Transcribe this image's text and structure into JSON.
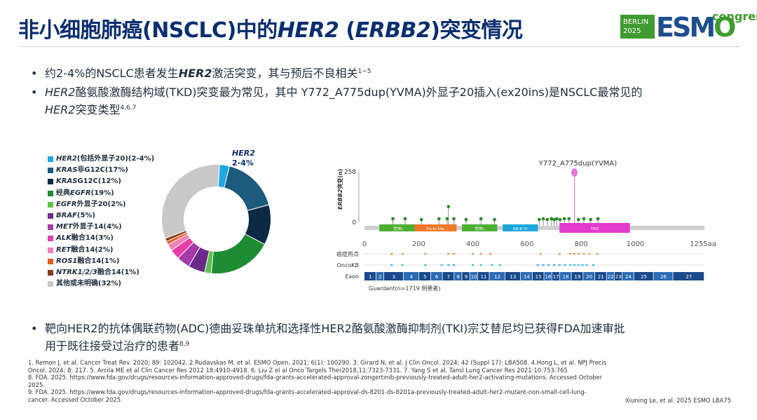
{
  "title": {
    "prefix": "非小细胞肺癌(NSCLC)中的",
    "her2": "HER2",
    "paren_open": " (",
    "erbb2": "ERBB2",
    "suffix": ")突变情况"
  },
  "logo": {
    "city": "BERLIN",
    "year": "2025",
    "brand": "ESMO",
    "brand_es": "ESM",
    "brand_o": "O",
    "suffix": "congress",
    "brand_color": "#1f4e8c",
    "accent_color": "#3f9a2f"
  },
  "bullets": [
    {
      "pre": "约2-4%的NSCLC患者发生",
      "em": "HER2",
      "post": "激活突变，其与预后不良相关",
      "sup": "1−5"
    },
    {
      "em": "HER2",
      "line1": "酪氨酸激酶结构域(TKD)突变最为常见，其中 Y772_A775dup(YVMA)外显子20插入(ex20ins)是NSCLC最常见的",
      "em2": "HER2",
      "line2": "突变类型",
      "sup": "4,6,7"
    }
  ],
  "bottom_bullet": {
    "line1": "靶向HER2的抗体偶联药物(ADC)德曲妥珠单抗和选择性HER2酪氨酸激酶抑制剂(TKI)宗艾替尼均已获得FDA加速审批",
    "line2": "用于既往接受过治疗的患者",
    "sup": "8,9"
  },
  "donut_chart": {
    "type": "pie",
    "callout_title": "HER2",
    "callout_value": "2-4%",
    "legend": [
      {
        "label_em": "HER2",
        "label": "(包括外显子20)(2-4%)",
        "value": 3,
        "color": "#1fa8e0"
      },
      {
        "label_em": "KRAS",
        "label": "非G12C(17%)",
        "value": 17,
        "color": "#1c5a7e"
      },
      {
        "label_em": "KRAS",
        "label": " G12C(12%)",
        "value": 12,
        "color": "#0c2a44"
      },
      {
        "label_em": "",
        "label": "经典",
        "label_em2": "EGFR",
        "label2": " (19%)",
        "value": 19,
        "color": "#1e8c32"
      },
      {
        "label_em": "EGFR",
        "label": "外显子20(2%)",
        "value": 2,
        "color": "#5cc24a"
      },
      {
        "label_em": "BRAF",
        "label": "(5%)",
        "value": 5,
        "color": "#6a2a8c"
      },
      {
        "label_em": "MET",
        "label": "外显子14(4%)",
        "value": 4,
        "color": "#a33aa8"
      },
      {
        "label_em": "ALK",
        "label": "融合14(3%)",
        "value": 3,
        "color": "#e83ba8"
      },
      {
        "label_em": "RET",
        "label": "融合14(2%)",
        "value": 2,
        "color": "#f07fb8"
      },
      {
        "label_em": "ROS1",
        "label": "融合14(1%)",
        "value": 1,
        "color": "#e15a24"
      },
      {
        "label_em": "NTRK1/2/3",
        "label": "融合14(1%)",
        "value": 1,
        "color": "#8a3a1a"
      },
      {
        "label_em": "",
        "label": "其他或未明确(32%)",
        "value": 32,
        "color": "#c8c8c8"
      }
    ]
  },
  "lollipop_chart": {
    "type": "scatter",
    "y_label": "突变(n)",
    "y_label_em": "ERBB2",
    "y_ticks": [
      "258",
      "0"
    ],
    "ylim": [
      0,
      258
    ],
    "x_ticks": [
      "0",
      "200",
      "400",
      "600",
      "800",
      "1000",
      "1255aa"
    ],
    "xlim": [
      0,
      1255
    ],
    "hotspot_label": "Y772_A775dup(YVMA)",
    "hotspot": {
      "x": 775,
      "y": 258
    },
    "domains": [
      {
        "label": "受体L",
        "start": 55,
        "end": 195,
        "color": "#4caf32"
      },
      {
        "label": "Furin-like",
        "start": 185,
        "end": 340,
        "color": "#f07a2a"
      },
      {
        "label": "受体L",
        "start": 360,
        "end": 490,
        "color": "#4caf32"
      },
      {
        "label": "GR-R IV",
        "start": 510,
        "end": 640,
        "color": "#1aa8dc"
      },
      {
        "label": "TKD",
        "start": 720,
        "end": 980,
        "color": "#e23acb"
      }
    ],
    "mutations": [
      {
        "x": 105,
        "y": 18
      },
      {
        "x": 150,
        "y": 18
      },
      {
        "x": 210,
        "y": 14
      },
      {
        "x": 275,
        "y": 18
      },
      {
        "x": 305,
        "y": 18
      },
      {
        "x": 310,
        "y": 80
      },
      {
        "x": 330,
        "y": 18
      },
      {
        "x": 375,
        "y": 14
      },
      {
        "x": 430,
        "y": 18
      },
      {
        "x": 480,
        "y": 14
      },
      {
        "x": 645,
        "y": 14
      },
      {
        "x": 660,
        "y": 18
      },
      {
        "x": 675,
        "y": 14
      },
      {
        "x": 690,
        "y": 18
      },
      {
        "x": 700,
        "y": 14
      },
      {
        "x": 710,
        "y": 18
      },
      {
        "x": 722,
        "y": 14
      },
      {
        "x": 738,
        "y": 18
      },
      {
        "x": 755,
        "y": 18
      },
      {
        "x": 790,
        "y": 14
      },
      {
        "x": 810,
        "y": 18
      },
      {
        "x": 835,
        "y": 14
      },
      {
        "x": 862,
        "y": 18
      }
    ],
    "tracks": [
      "癌症热点",
      "OncoKB",
      "Exon"
    ],
    "hotspot_ticks": [
      100,
      140,
      225,
      310,
      330,
      400,
      430,
      465,
      650,
      720,
      760,
      775,
      790,
      810,
      830,
      860
    ],
    "oncokb_ticks": [
      100,
      140,
      225,
      285,
      310,
      330,
      400,
      430,
      470,
      500,
      640,
      660,
      680,
      700,
      720,
      740,
      760,
      775,
      790,
      805,
      820,
      845
    ],
    "exons": [
      "1",
      "2",
      "3",
      "4",
      "5",
      "6",
      "7",
      "8",
      "9",
      "10",
      "11",
      "12",
      "13",
      "14",
      "15",
      "16",
      "17",
      "18",
      "19",
      "20",
      "21",
      "22",
      "23",
      "24",
      "25",
      "26",
      "27"
    ],
    "exon_widths": [
      3,
      2,
      5,
      4,
      3,
      3,
      3,
      2,
      2,
      2,
      3,
      4,
      4,
      3,
      3,
      2,
      2,
      3,
      3,
      3,
      3,
      2,
      2,
      3,
      5,
      5,
      8
    ],
    "source": "Guardant(n=1719 例患者)",
    "mut_color": "#2f8a2f",
    "hotspot_color": "#e07ad6",
    "exon_color": "#1a4a8a",
    "exon_alt_color": "#2d6bb3"
  },
  "references": [
    "1. Remon J, et al. Cancer Treat Rev. 2020; 89: 102042. 2.Rudavskas M, et al. ESMO Open. 2021; 6(1): 100290. 3. Girard N, et al. J Clin Oncol. 2024; 42 (Suppl 17): LBA508. 4.Hong L, et al. NPJ Precis",
    "Oncol. 2024; 8: 217. 5. Arcila ME et al Clin Cancer Res 2012 18:4910-4918. 6. Liu Z el al Onco Targels Ther2018,11:7323-7331. 7. Yang S et al. Tansl Lung Cancer Res 2021:10:753-765",
    "8. FDA. 2025. https://www.fda.gov/drugs/resources-information-approved-drugs/fda-grants-accelerated-approval-zongertinib-previously-treated-adult-her2-activating-mutations. Accessed October",
    "2025.",
    "9. FDA. 2025. https://www.fda.gov/drugs/resources-information-approved-drugs/fda-grants-accelerated-approval-ds-8201-ds-8201a-previously-treated-adult-her2-mutant-non-small-cell-lung-",
    "cancer. Accessed October 2025."
  ],
  "credit": "Xiuning Le, et al. 2025 ESMO LBA75"
}
